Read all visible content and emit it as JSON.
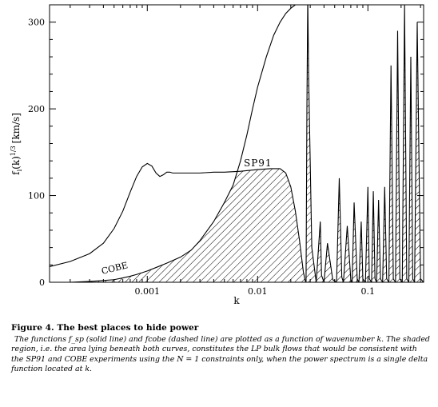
{
  "chart_data": {
    "type": "line",
    "xlabel": "k",
    "ylabel": "f_i(k)^{1/3} [km/s]",
    "ylabel_base": "f",
    "ylabel_sub": "i",
    "ylabel_mid": "(k)",
    "ylabel_sup": "1/3",
    "ylabel_units": "[km/s]",
    "x_scale": "log",
    "xlim": [
      0.00013,
      0.32
    ],
    "ylim": [
      0,
      320
    ],
    "x_ticks": [
      0.001,
      0.01,
      0.1
    ],
    "x_tick_labels": [
      "0.001",
      "0.01",
      "0.1"
    ],
    "y_ticks": [
      0,
      100,
      200,
      300
    ],
    "y_tick_labels": [
      "0",
      "100",
      "200",
      "300"
    ],
    "grid": false,
    "legend": "none",
    "curve_labels": {
      "sp": "SP91",
      "cobe": "COBE"
    },
    "shaded_region": "area lying beneath both curves (hatched)",
    "series": [
      {
        "name": "SP91",
        "style": "solid",
        "x": [
          0.00013,
          0.0002,
          0.0003,
          0.0004,
          0.0005,
          0.0006,
          0.0007,
          0.0008,
          0.0009,
          0.001,
          0.0011,
          0.0012,
          0.0013,
          0.0014,
          0.0015,
          0.0016,
          0.0017,
          0.0018,
          0.002,
          0.0022,
          0.0025,
          0.003,
          0.004,
          0.005,
          0.007,
          0.01,
          0.013,
          0.016,
          0.018,
          0.02,
          0.022,
          0.024,
          0.026,
          0.027,
          0.0275,
          0.028,
          0.0285,
          0.029,
          0.031,
          0.034,
          0.037,
          0.038,
          0.04,
          0.043,
          0.048,
          0.052,
          0.055,
          0.058,
          0.06,
          0.065,
          0.07,
          0.072,
          0.075,
          0.08,
          0.083,
          0.087,
          0.09,
          0.095,
          0.1,
          0.103,
          0.108,
          0.112,
          0.116,
          0.12,
          0.125,
          0.13,
          0.136,
          0.142,
          0.148,
          0.155,
          0.162,
          0.17,
          0.178,
          0.186,
          0.195,
          0.205,
          0.215,
          0.225,
          0.235,
          0.245,
          0.255,
          0.265,
          0.28,
          0.3,
          0.32
        ],
        "y": [
          18,
          24,
          33,
          45,
          62,
          82,
          104,
          122,
          133,
          137,
          134,
          126,
          122,
          124,
          127,
          127,
          126,
          126,
          126,
          126,
          126,
          126,
          127,
          127,
          128,
          130,
          131,
          131,
          126,
          110,
          82,
          48,
          12,
          2,
          0,
          200,
          330,
          240,
          40,
          0,
          70,
          8,
          0,
          45,
          3,
          0,
          120,
          6,
          0,
          65,
          3,
          0,
          92,
          4,
          0,
          70,
          4,
          0,
          110,
          4,
          0,
          105,
          4,
          0,
          95,
          4,
          0,
          110,
          4,
          0,
          250,
          4,
          0,
          290,
          4,
          0,
          320,
          4,
          0,
          260,
          4,
          0,
          300,
          4,
          0
        ]
      },
      {
        "name": "COBE",
        "style": "dashed",
        "x": [
          0.00013,
          0.0002,
          0.0003,
          0.0004,
          0.0005,
          0.0006,
          0.0007,
          0.0008,
          0.001,
          0.0012,
          0.0015,
          0.002,
          0.0025,
          0.003,
          0.004,
          0.005,
          0.006,
          0.007,
          0.008,
          0.009,
          0.01,
          0.012,
          0.014,
          0.016,
          0.018,
          0.02,
          0.022,
          0.025
        ],
        "y": [
          0,
          0,
          1,
          2,
          3,
          5,
          7,
          9,
          13,
          17,
          22,
          29,
          37,
          48,
          70,
          92,
          112,
          140,
          170,
          200,
          225,
          260,
          285,
          300,
          310,
          316,
          320,
          320
        ]
      }
    ]
  },
  "caption": {
    "title": "Figure 4.  The best places to hide power",
    "body": "The functions f_sp (solid line) and fcobe (dashed line) are plotted as a function of wavenumber k.  The shaded region, i.e.  the area lying beneath both curves, constitutes the LP bulk flows that would be consistent with the SP91 and COBE experiments using the N = 1 constraints only, when the power spectrum is a single delta function located at k."
  }
}
